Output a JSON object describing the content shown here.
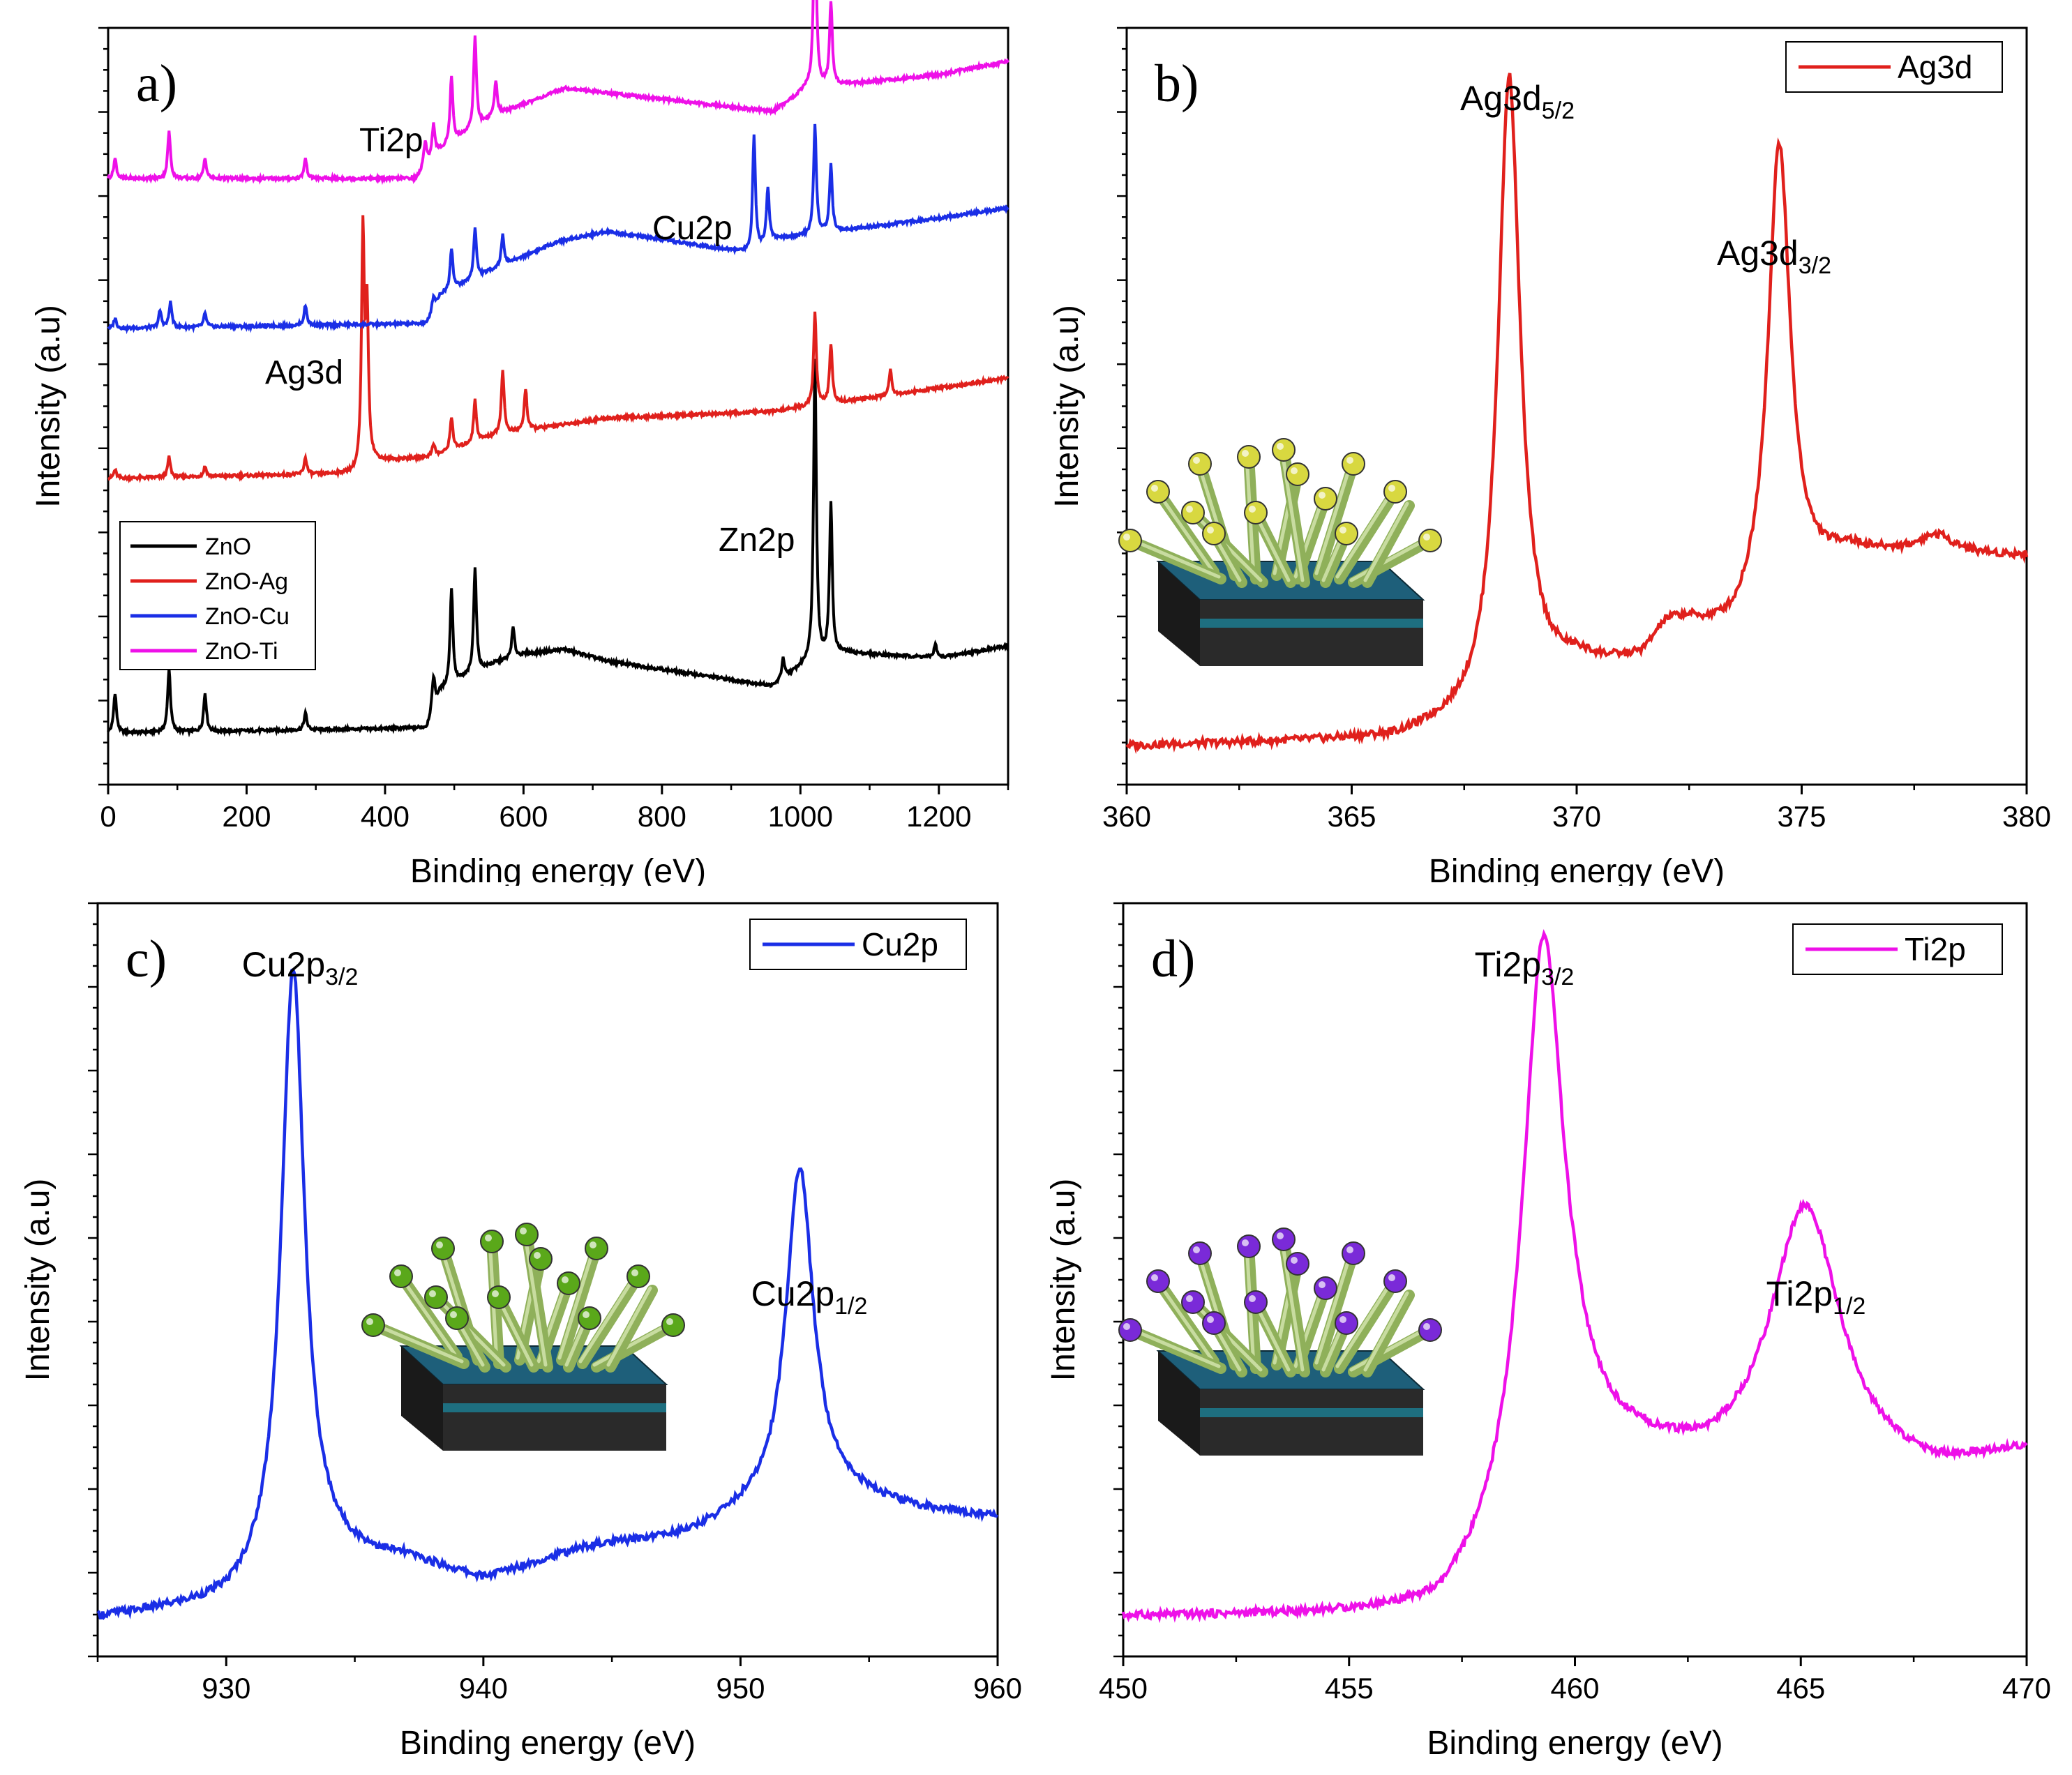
{
  "chart_data": [
    {
      "type": "line",
      "panel_label": "a)",
      "xlabel": "Binding energy (eV)",
      "ylabel": "Intensity (a.u)",
      "xlim": [
        0,
        1300
      ],
      "x_ticks": [
        0,
        200,
        400,
        600,
        800,
        1000,
        1200
      ],
      "y_ticks_shown": false,
      "legend": {
        "position": "lower-left",
        "entries": [
          "ZnO",
          "ZnO-Ag",
          "ZnO-Cu",
          "ZnO-Ti"
        ]
      },
      "annotations": [
        {
          "text": "Ti2p",
          "x": 455,
          "series": "ZnO-Ti"
        },
        {
          "text": "Cu2p",
          "x": 930,
          "series": "ZnO-Cu"
        },
        {
          "text": "Ag3d",
          "x": 368,
          "series": "ZnO-Ag"
        },
        {
          "text": "Zn2p",
          "x": 1022,
          "series": "ZnO"
        }
      ],
      "series": [
        {
          "name": "ZnO",
          "color": "#000000",
          "baseline": [
            [
              0,
              1.0
            ],
            [
              460,
              1.3
            ],
            [
              480,
              3.5
            ],
            [
              520,
              4.4
            ],
            [
              560,
              5.2
            ],
            [
              600,
              5.7
            ],
            [
              660,
              6.0
            ],
            [
              720,
              5.3
            ],
            [
              960,
              3.8
            ],
            [
              1010,
              5.2
            ],
            [
              1060,
              5.8
            ],
            [
              1200,
              5.5
            ],
            [
              1300,
              6.2
            ]
          ],
          "peaks": [
            [
              10,
              2.4
            ],
            [
              88,
              3.8
            ],
            [
              140,
              2.3
            ],
            [
              285,
              1.0
            ],
            [
              470,
              2.0
            ],
            [
              496,
              5.8
            ],
            [
              530,
              6.3
            ],
            [
              585,
              1.8
            ],
            [
              975,
              1.2
            ],
            [
              1021,
              18.0
            ],
            [
              1044,
              9.0
            ],
            [
              1195,
              0.8
            ]
          ]
        },
        {
          "name": "ZnO-Ag",
          "color": "#e0201c",
          "baseline": [
            [
              0,
              1.0
            ],
            [
              365,
              1.3
            ],
            [
              380,
              2.0
            ],
            [
              470,
              2.3
            ],
            [
              560,
              3.6
            ],
            [
              720,
              4.6
            ],
            [
              960,
              5.0
            ],
            [
              1100,
              5.8
            ],
            [
              1300,
              7.0
            ]
          ],
          "peaks": [
            [
              10,
              0.5
            ],
            [
              88,
              1.2
            ],
            [
              140,
              0.6
            ],
            [
              285,
              1.0
            ],
            [
              368,
              14.0
            ],
            [
              374,
              9.0
            ],
            [
              470,
              0.8
            ],
            [
              496,
              2.0
            ],
            [
              530,
              2.5
            ],
            [
              570,
              3.8
            ],
            [
              603,
              2.5
            ],
            [
              1021,
              5.5
            ],
            [
              1044,
              3.5
            ],
            [
              1130,
              1.5
            ]
          ]
        },
        {
          "name": "ZnO-Cu",
          "color": "#1a2ee6",
          "baseline": [
            [
              0,
              1.0
            ],
            [
              460,
              1.3
            ],
            [
              480,
              3.0
            ],
            [
              560,
              4.6
            ],
            [
              650,
              6.2
            ],
            [
              720,
              6.8
            ],
            [
              930,
              5.5
            ],
            [
              960,
              6.3
            ],
            [
              1200,
              7.6
            ],
            [
              1300,
              8.2
            ]
          ],
          "peaks": [
            [
              10,
              0.6
            ],
            [
              75,
              1.0
            ],
            [
              90,
              1.5
            ],
            [
              140,
              0.8
            ],
            [
              285,
              1.2
            ],
            [
              470,
              0.8
            ],
            [
              496,
              2.5
            ],
            [
              530,
              3.0
            ],
            [
              570,
              1.8
            ],
            [
              933,
              7.0
            ],
            [
              953,
              3.3
            ],
            [
              1021,
              6.5
            ],
            [
              1044,
              4.0
            ]
          ]
        },
        {
          "name": "ZnO-Ti",
          "color": "#ee10e8",
          "baseline": [
            [
              0,
              1.0
            ],
            [
              445,
              1.0
            ],
            [
              470,
              2.4
            ],
            [
              520,
              3.8
            ],
            [
              560,
              4.8
            ],
            [
              660,
              6.4
            ],
            [
              960,
              5.0
            ],
            [
              1010,
              6.4
            ],
            [
              1200,
              7.2
            ],
            [
              1300,
              8.0
            ]
          ],
          "peaks": [
            [
              10,
              1.2
            ],
            [
              88,
              2.8
            ],
            [
              140,
              1.2
            ],
            [
              285,
              1.2
            ],
            [
              458,
              1.5
            ],
            [
              470,
              1.8
            ],
            [
              496,
              4.0
            ],
            [
              530,
              5.4
            ],
            [
              560,
              2.0
            ],
            [
              1021,
              11.5
            ],
            [
              1044,
              5.0
            ]
          ]
        }
      ]
    },
    {
      "type": "line",
      "panel_label": "b)",
      "xlabel": "Binding energy (eV)",
      "ylabel": "Intensity (a.u)",
      "xlim": [
        360,
        380
      ],
      "x_ticks": [
        360,
        365,
        370,
        375,
        380
      ],
      "legend": {
        "position": "top-right",
        "entries": [
          "Ag3d"
        ]
      },
      "series": [
        {
          "name": "Ag3d",
          "color": "#e0201c",
          "background": [
            [
              360,
              0.0
            ],
            [
              366,
              0.01
            ],
            [
              368,
              0.04
            ],
            [
              370,
              0.12
            ],
            [
              371.5,
              0.12
            ],
            [
              372.5,
              0.17
            ],
            [
              373.5,
              0.17
            ],
            [
              376,
              0.3
            ],
            [
              380,
              0.3
            ]
          ],
          "peaks": [
            [
              368.5,
              1.0,
              0.3
            ],
            [
              374.5,
              0.73,
              0.3
            ],
            [
              372.0,
              0.04,
              0.5
            ],
            [
              378.0,
              0.03,
              0.5
            ]
          ]
        }
      ],
      "annotations": [
        {
          "text": "Ag3d",
          "subscript": "5/2",
          "x": 368.5
        },
        {
          "text": "Ag3d",
          "subscript": "3/2",
          "x": 374.5
        }
      ]
    },
    {
      "type": "line",
      "panel_label": "c)",
      "xlabel": "Binding energy (eV)",
      "ylabel": "Intensity (a.u)",
      "xlim": [
        925,
        960
      ],
      "x_ticks": [
        930,
        940,
        950,
        960
      ],
      "legend": {
        "position": "top-right",
        "entries": [
          "Cu2p"
        ]
      },
      "series": [
        {
          "name": "Cu2p",
          "color": "#1a2ee6",
          "background": [
            [
              925,
              0.0
            ],
            [
              930,
              0.02
            ],
            [
              934,
              0.09
            ],
            [
              937,
              0.09
            ],
            [
              940,
              0.06
            ],
            [
              944,
              0.11
            ],
            [
              948,
              0.13
            ],
            [
              950,
              0.16
            ],
            [
              954,
              0.19
            ],
            [
              957,
              0.17
            ],
            [
              960,
              0.16
            ]
          ],
          "peaks": [
            [
              932.6,
              0.97,
              0.55
            ],
            [
              952.3,
              0.54,
              0.65
            ]
          ]
        }
      ],
      "annotations": [
        {
          "text": "Cu2p",
          "subscript": "3/2",
          "x": 932.6
        },
        {
          "text": "Cu2p",
          "subscript": "1/2",
          "x": 952.3
        }
      ]
    },
    {
      "type": "line",
      "panel_label": "d)",
      "xlabel": "Binding energy (eV)",
      "ylabel": "Intensity (a.u)",
      "xlim": [
        450,
        470
      ],
      "x_ticks": [
        450,
        455,
        460,
        465,
        470
      ],
      "legend": {
        "position": "top-right",
        "entries": [
          "Ti2p"
        ]
      },
      "series": [
        {
          "name": "Ti2p",
          "color": "#ee10e8",
          "background": [
            [
              450,
              0.0
            ],
            [
              457,
              0.0
            ],
            [
              458,
              0.06
            ],
            [
              460,
              0.24
            ],
            [
              461.5,
              0.24
            ],
            [
              463,
              0.22
            ],
            [
              468,
              0.22
            ],
            [
              470,
              0.26
            ]
          ],
          "peaks": [
            [
              459.3,
              0.9,
              0.55
            ],
            [
              465.1,
              0.43,
              0.95
            ]
          ]
        }
      ],
      "annotations": [
        {
          "text": "Ti2p",
          "subscript": "3/2",
          "x": 459.3
        },
        {
          "text": "Ti2p",
          "subscript": "1/2",
          "x": 465.1
        }
      ]
    }
  ],
  "inset_illustrations": [
    {
      "panel": "b)",
      "description_icon": "nanorod-array-with-nanoparticles-icon",
      "particle_color": "#d8d840"
    },
    {
      "panel": "c)",
      "description_icon": "nanorod-array-with-nanoparticles-icon",
      "particle_color": "#5aa81a"
    },
    {
      "panel": "d)",
      "description_icon": "nanorod-array-with-nanoparticles-icon",
      "particle_color": "#7a2ad8"
    }
  ]
}
